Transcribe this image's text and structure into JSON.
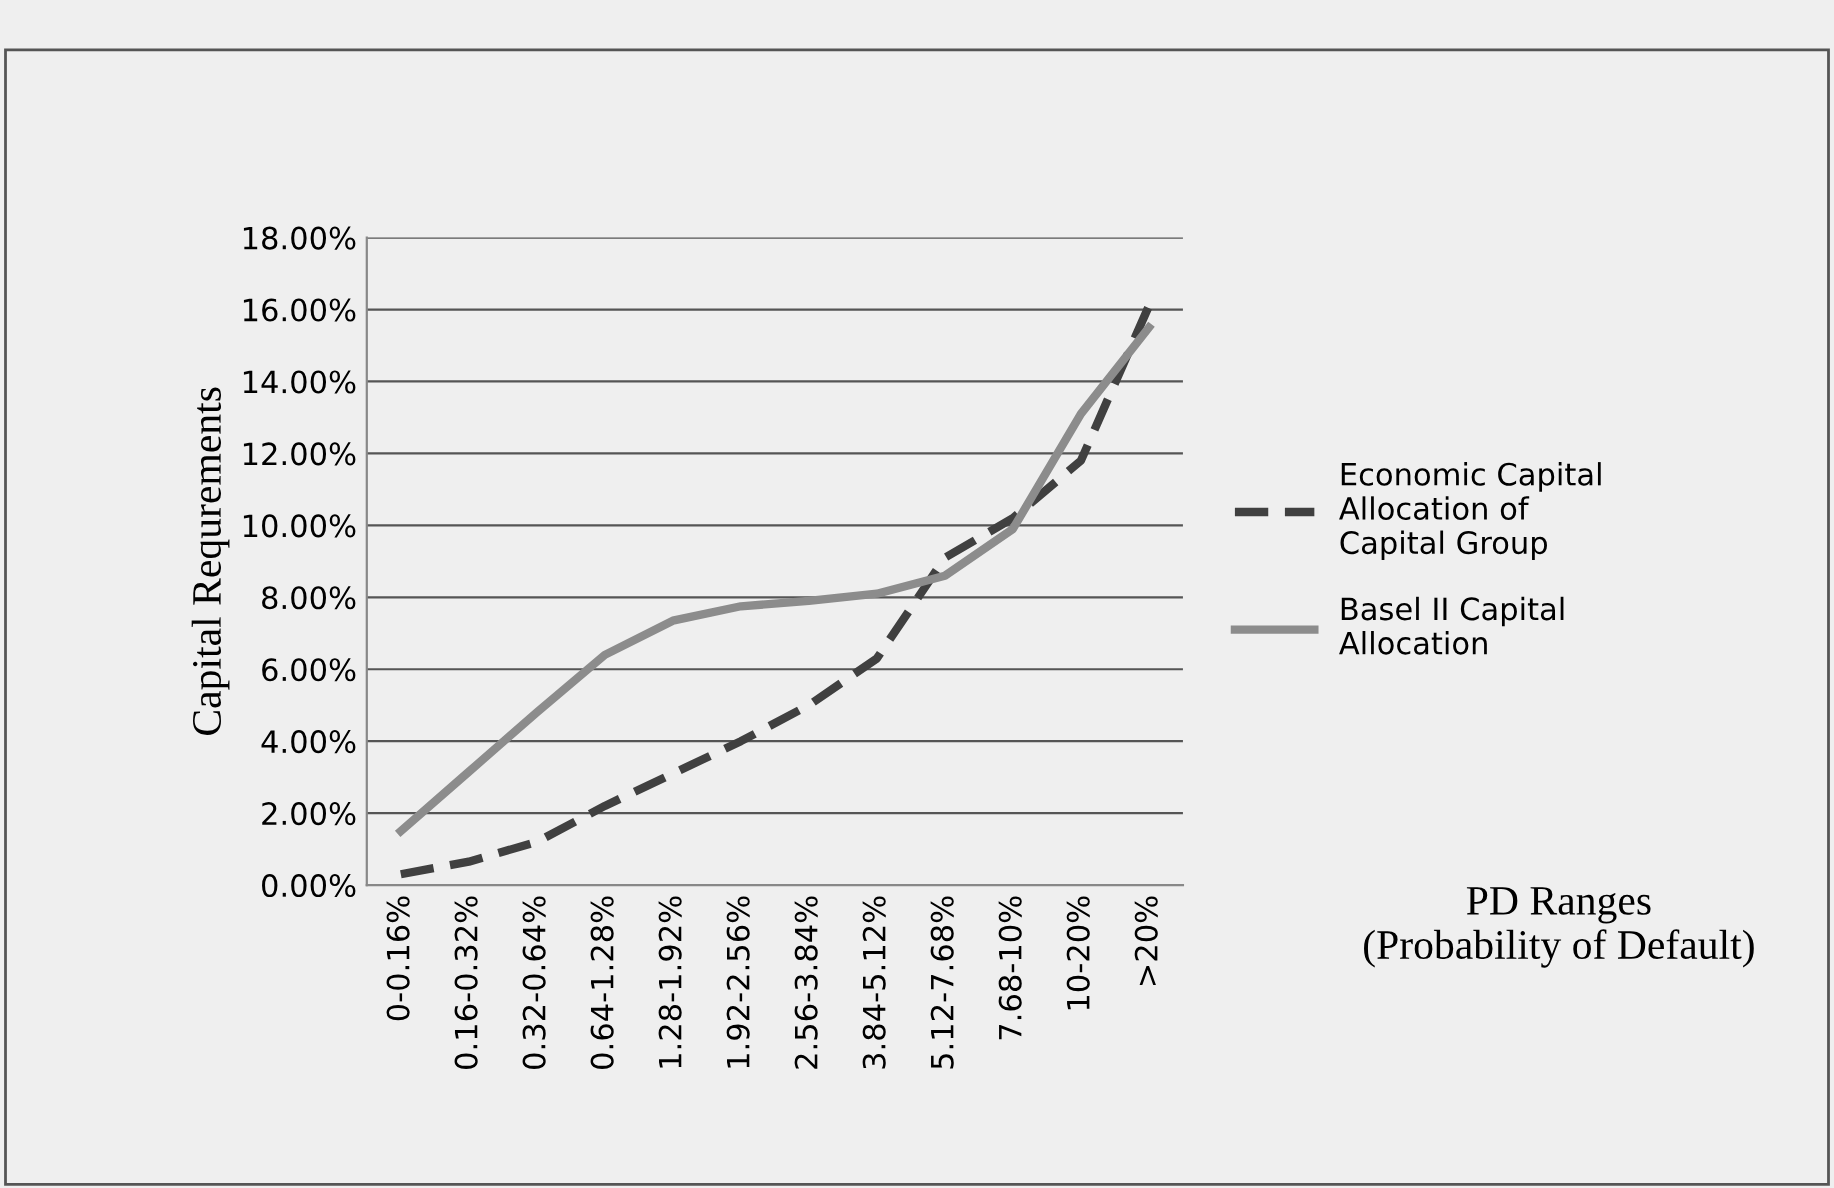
{
  "chart_data": {
    "type": "line",
    "ylabel": "Capital Requrements",
    "xlabel": "PD Ranges\n(Probability of Default)",
    "categories": [
      "0-0.16%",
      "0.16-0.32%",
      "0.32-0.64%",
      "0.64-1.28%",
      "1.28-1.92%",
      "1.92-2.56%",
      "2.56-3.84%",
      "3.84-5.12%",
      "5.12-7.68%",
      "7.68-10%",
      "10-20%",
      ">20%"
    ],
    "series": [
      {
        "name": "Economic Capital Allocation of Capital Group",
        "color": "#404040",
        "line_style": "dashed",
        "values": [
          0.3,
          0.65,
          1.2,
          2.2,
          3.1,
          4.0,
          5.0,
          6.3,
          9.1,
          10.2,
          11.8,
          16.1
        ]
      },
      {
        "name": "Basel II Capital Allocation",
        "color": "#8c8c8c",
        "line_style": "solid",
        "values": [
          1.5,
          3.15,
          4.8,
          6.4,
          7.35,
          7.75,
          7.9,
          8.1,
          8.6,
          9.9,
          13.1,
          15.5
        ]
      }
    ],
    "ylim": [
      0,
      18
    ],
    "yticks": [
      {
        "value": 0,
        "label": "0.00%"
      },
      {
        "value": 2,
        "label": "2.00%"
      },
      {
        "value": 4,
        "label": "4.00%"
      },
      {
        "value": 6,
        "label": "6.00%"
      },
      {
        "value": 8,
        "label": "8.00%"
      },
      {
        "value": 10,
        "label": "10.00%"
      },
      {
        "value": 12,
        "label": "12.00%"
      },
      {
        "value": 14,
        "label": "14.00%"
      },
      {
        "value": 16,
        "label": "16.00%"
      },
      {
        "value": 18,
        "label": "18.00%"
      }
    ],
    "grid": "y",
    "legend": "right",
    "marker": "none"
  }
}
